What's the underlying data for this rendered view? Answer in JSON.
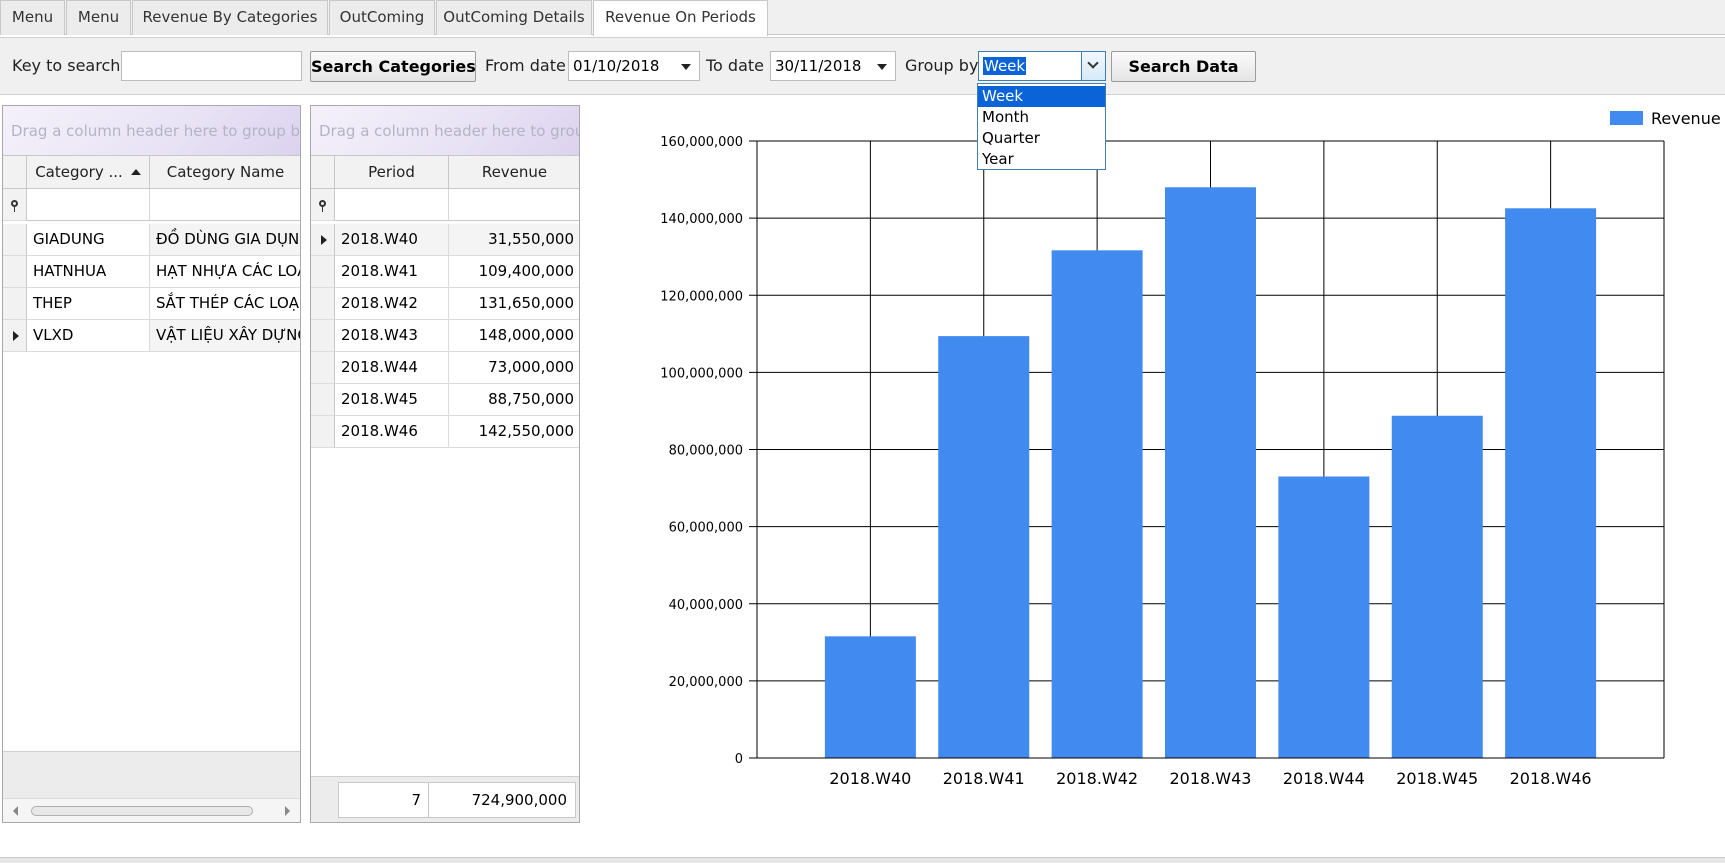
{
  "tabs": [
    {
      "label": "Menu"
    },
    {
      "label": "Menu"
    },
    {
      "label": "Revenue By Categories"
    },
    {
      "label": "OutComing"
    },
    {
      "label": "OutComing Details"
    },
    {
      "label": "Revenue On Periods",
      "active": true
    }
  ],
  "toolbar": {
    "key_label": "Key to search",
    "key_value": "",
    "search_categories": "Search Categories",
    "from_label": "From date",
    "from_value": "01/10/2018",
    "to_label": "To date",
    "to_value": "30/11/2018",
    "group_label": "Group by",
    "group_value": "Week",
    "group_options": [
      "Week",
      "Month",
      "Quarter",
      "Year"
    ],
    "search_data": "Search Data"
  },
  "categories_grid": {
    "group_hint": "Drag a column header here to group by that column",
    "columns": [
      "Category ...",
      "Category Name"
    ],
    "rows": [
      {
        "code": "GIADUNG",
        "name": "ĐỒ DÙNG GIA DỤNG"
      },
      {
        "code": "HATNHUA",
        "name": "HẠT NHỰA CÁC LOẠI"
      },
      {
        "code": "THEP",
        "name": "SẮT THÉP CÁC LOẠI"
      },
      {
        "code": "VLXD",
        "name": "VẬT LIỆU XÂY DỰNG"
      }
    ]
  },
  "periods_grid": {
    "group_hint": "Drag a column header here to group by that column",
    "columns": [
      "Period",
      "Revenue"
    ],
    "rows": [
      {
        "period": "2018.W40",
        "revenue": "31,550,000"
      },
      {
        "period": "2018.W41",
        "revenue": "109,400,000"
      },
      {
        "period": "2018.W42",
        "revenue": "131,650,000"
      },
      {
        "period": "2018.W43",
        "revenue": "148,000,000"
      },
      {
        "period": "2018.W44",
        "revenue": "73,000,000"
      },
      {
        "period": "2018.W45",
        "revenue": "88,750,000"
      },
      {
        "period": "2018.W46",
        "revenue": "142,550,000"
      }
    ],
    "footer_count": "7",
    "footer_total": "724,900,000"
  },
  "chart_data": {
    "type": "bar",
    "categories": [
      "2018.W40",
      "2018.W41",
      "2018.W42",
      "2018.W43",
      "2018.W44",
      "2018.W45",
      "2018.W46"
    ],
    "series": [
      {
        "name": "Revenue",
        "values": [
          31550000,
          109400000,
          131650000,
          148000000,
          73000000,
          88750000,
          142550000
        ],
        "color": "#418af0"
      }
    ],
    "ylim": [
      0,
      160000000
    ],
    "yticks": [
      "0",
      "20,000,000",
      "40,000,000",
      "60,000,000",
      "80,000,000",
      "100,000,000",
      "120,000,000",
      "140,000,000",
      "160,000,000"
    ],
    "grid": true,
    "legend": "top-right",
    "title": "",
    "xlabel": "",
    "ylabel": ""
  }
}
